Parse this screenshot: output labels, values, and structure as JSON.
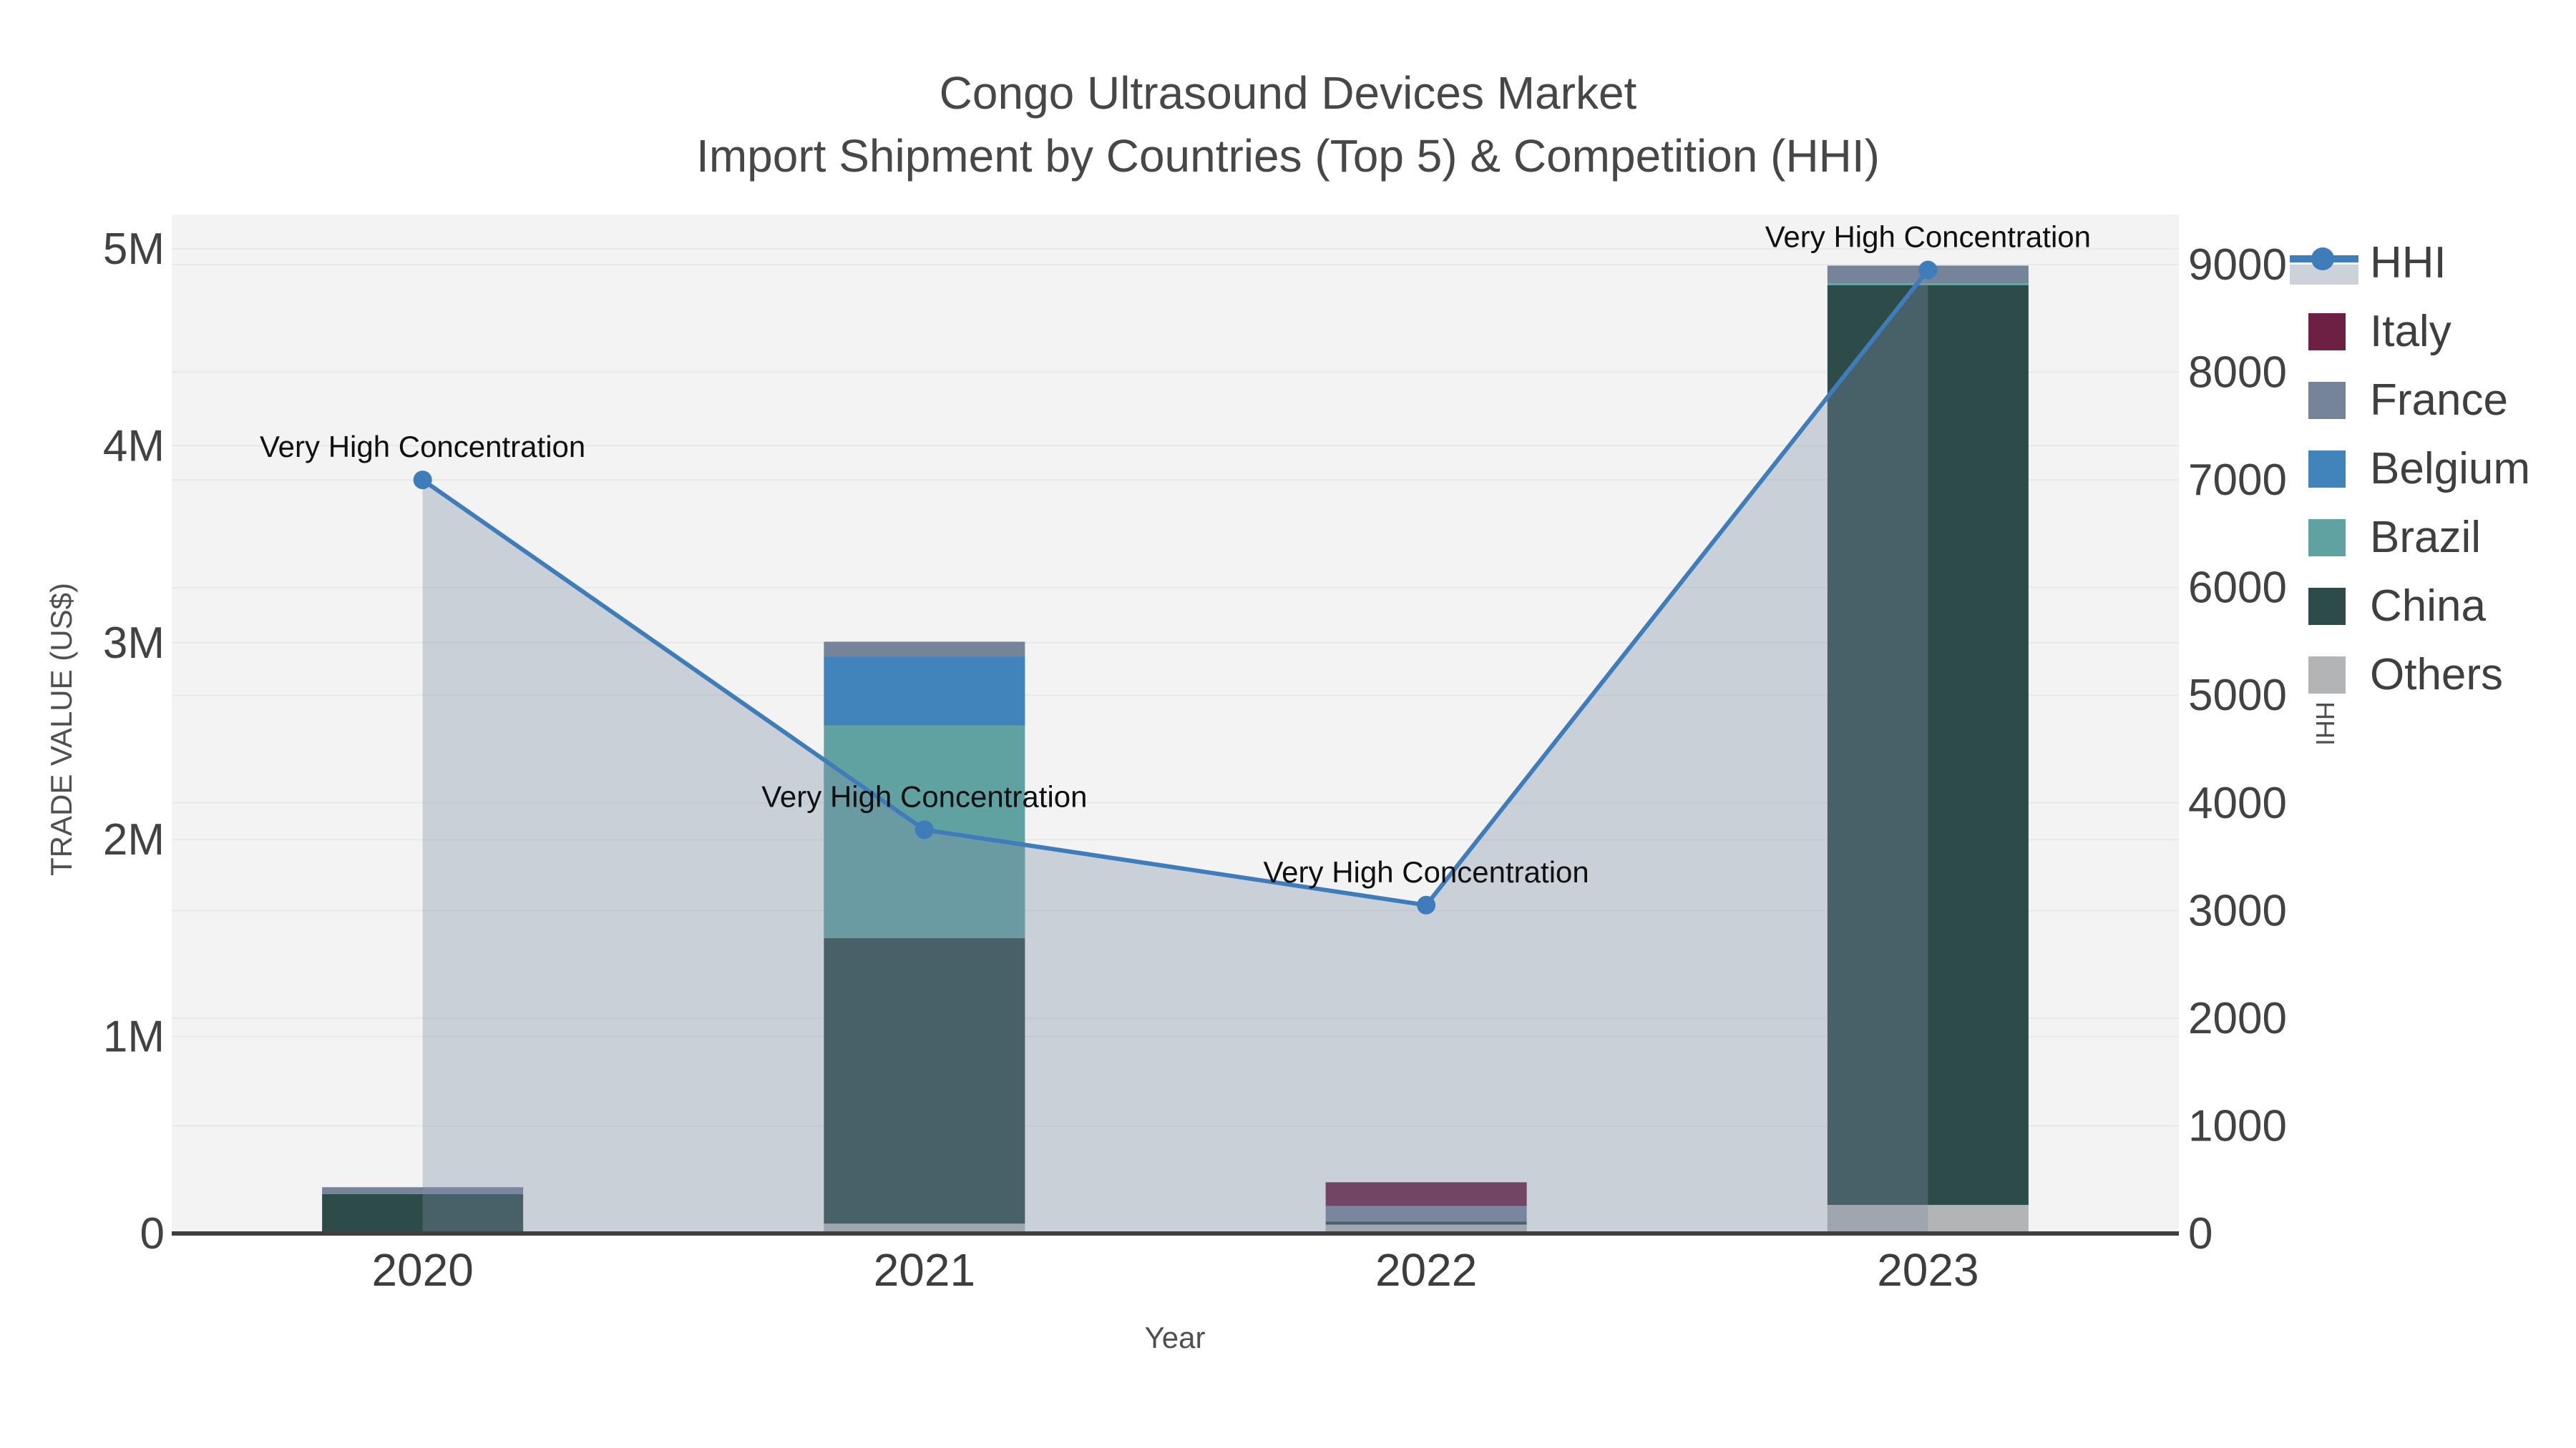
{
  "title": {
    "line1": "Congo Ultrasound Devices Market",
    "line2": "Import Shipment by Countries (Top 5) & Competition (HHI)"
  },
  "chart_data": {
    "type": "bar+line",
    "title": "Congo Ultrasound Devices Market — Import Shipment by Countries (Top 5) & Competition (HHI)",
    "categories": [
      "2020",
      "2021",
      "2022",
      "2023"
    ],
    "stacked_bar_series": [
      {
        "name": "Others",
        "color": "#b2b4b5",
        "values": [
          0,
          50000,
          45000,
          145000
        ]
      },
      {
        "name": "China",
        "color": "#2d4b49",
        "values": [
          200000,
          1450000,
          15000,
          4670000
        ]
      },
      {
        "name": "Brazil",
        "color": "#60a2a2",
        "values": [
          0,
          1080000,
          0,
          10000
        ]
      },
      {
        "name": "Belgium",
        "color": "#4183bb",
        "values": [
          0,
          350000,
          0,
          0
        ]
      },
      {
        "name": "France",
        "color": "#76849a",
        "values": [
          35000,
          75000,
          80000,
          90000
        ]
      },
      {
        "name": "Italy",
        "color": "#6d2043",
        "values": [
          0,
          0,
          120000,
          0
        ]
      }
    ],
    "line_series": {
      "name": "HHI",
      "axis": "right",
      "color": "#3e7cba",
      "area_fill": "rgba(125,142,165,0.34)",
      "values": [
        7000,
        3750,
        3050,
        8950
      ]
    },
    "annotations": [
      {
        "text": "Very High Concentration",
        "category_index": 0
      },
      {
        "text": "Very High Concentration",
        "category_index": 1
      },
      {
        "text": "Very High Concentration",
        "category_index": 2
      },
      {
        "text": "Very High Concentration",
        "category_index": 3
      }
    ],
    "y_left_axis": {
      "title": "TRADE VALUE (US$)",
      "range": [
        0,
        5000000
      ],
      "ticks": [
        {
          "label": "0",
          "value": 0
        },
        {
          "label": "1M",
          "value": 1000000
        },
        {
          "label": "2M",
          "value": 2000000
        },
        {
          "label": "3M",
          "value": 3000000
        },
        {
          "label": "4M",
          "value": 4000000
        },
        {
          "label": "5M",
          "value": 5000000
        }
      ]
    },
    "y_right_axis": {
      "title": "HHI",
      "range": [
        0,
        9000
      ],
      "ticks": [
        {
          "label": "0",
          "value": 0
        },
        {
          "label": "1000",
          "value": 1000
        },
        {
          "label": "2000",
          "value": 2000
        },
        {
          "label": "3000",
          "value": 3000
        },
        {
          "label": "4000",
          "value": 4000
        },
        {
          "label": "5000",
          "value": 5000
        },
        {
          "label": "6000",
          "value": 6000
        },
        {
          "label": "7000",
          "value": 7000
        },
        {
          "label": "8000",
          "value": 8000
        },
        {
          "label": "9000",
          "value": 9000
        }
      ]
    },
    "x_axis": {
      "title": "Year"
    },
    "grid": true,
    "legend_position": "top-right-outside",
    "legend_order": [
      "HHI",
      "Italy",
      "France",
      "Belgium",
      "Brazil",
      "China",
      "Others"
    ]
  },
  "colors": {
    "plot_background": "#f2f3f2",
    "gridline": "#e6e9e9",
    "axis_line": "#3f3f3f",
    "hhi_line": "#3e7cba",
    "hhi_legend_band": "#ccd1da"
  }
}
